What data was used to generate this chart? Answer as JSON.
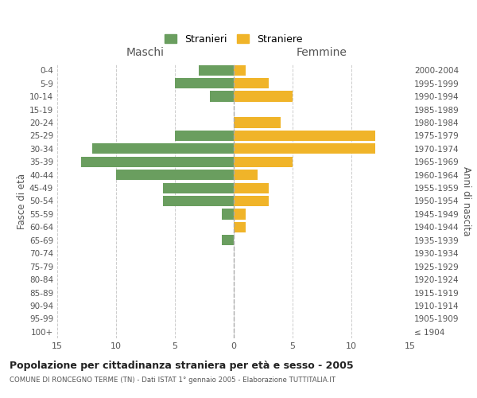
{
  "age_groups": [
    "100+",
    "95-99",
    "90-94",
    "85-89",
    "80-84",
    "75-79",
    "70-74",
    "65-69",
    "60-64",
    "55-59",
    "50-54",
    "45-49",
    "40-44",
    "35-39",
    "30-34",
    "25-29",
    "20-24",
    "15-19",
    "10-14",
    "5-9",
    "0-4"
  ],
  "birth_years": [
    "≤ 1904",
    "1905-1909",
    "1910-1914",
    "1915-1919",
    "1920-1924",
    "1925-1929",
    "1930-1934",
    "1935-1939",
    "1940-1944",
    "1945-1949",
    "1950-1954",
    "1955-1959",
    "1960-1964",
    "1965-1969",
    "1970-1974",
    "1975-1979",
    "1980-1984",
    "1985-1989",
    "1990-1994",
    "1995-1999",
    "2000-2004"
  ],
  "males": [
    0,
    0,
    0,
    0,
    0,
    0,
    0,
    1,
    0,
    1,
    6,
    6,
    10,
    13,
    12,
    5,
    0,
    0,
    2,
    5,
    3
  ],
  "females": [
    0,
    0,
    0,
    0,
    0,
    0,
    0,
    0,
    1,
    1,
    3,
    3,
    2,
    5,
    12,
    12,
    4,
    0,
    5,
    3,
    1
  ],
  "male_color": "#6a9e5f",
  "female_color": "#f0b429",
  "title": "Popolazione per cittadinanza straniera per età e sesso - 2005",
  "subtitle": "COMUNE DI RONCEGNO TERME (TN) - Dati ISTAT 1° gennaio 2005 - Elaborazione TUTTITALIA.IT",
  "xlabel_left": "Maschi",
  "xlabel_right": "Femmine",
  "ylabel_left": "Fasce di età",
  "ylabel_right": "Anni di nascita",
  "legend_males": "Stranieri",
  "legend_females": "Straniere",
  "xlim": 15,
  "background_color": "#ffffff",
  "grid_color": "#cccccc"
}
